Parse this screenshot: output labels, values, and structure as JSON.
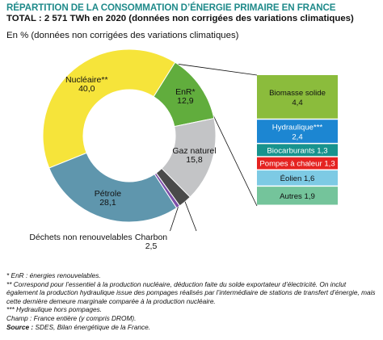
{
  "header": {
    "title": "RÉPARTITION DE LA CONSOMMATION D’ÉNERGIE PRIMAIRE EN FRANCE",
    "subtitle": "TOTAL : 2 571 TWh en 2020 (données non corrigées des variations climatiques)",
    "unit": "En % (données non corrigées des variations climatiques)"
  },
  "chart_data": {
    "type": "pie",
    "style": "donut with bar-of-pie breakdown",
    "title": "RÉPARTITION DE LA CONSOMMATION D’ÉNERGIE PRIMAIRE EN FRANCE",
    "legend": "none",
    "slices": [
      {
        "label": "Nucléaire**",
        "value": 40.0,
        "value_label": "40,0",
        "color": "#f6e43a"
      },
      {
        "label": "EnR*",
        "value": 12.9,
        "value_label": "12,9",
        "color": "#61ad3d"
      },
      {
        "label": "Gaz naturel",
        "value": 15.8,
        "value_label": "15,8",
        "color": "#c3c4c6"
      },
      {
        "label": "Charbon",
        "value": 2.5,
        "value_label": "2,5",
        "color": "#4a4a4a"
      },
      {
        "label": "Déchets non renouvelables",
        "value": 0.7,
        "value_label": "",
        "color": "#7d4fa8"
      },
      {
        "label": "Pétrole",
        "value": 28.1,
        "value_label": "28,1",
        "color": "#5f96ad"
      }
    ],
    "breakdown": {
      "of": "EnR*",
      "items": [
        {
          "label": "Biomasse solide",
          "value": 4.4,
          "value_label": "4,4",
          "color": "#8bbc3c"
        },
        {
          "label": "Hydraulique***",
          "value": 2.4,
          "value_label": "2,4",
          "color": "#1c86d2"
        },
        {
          "label": "Biocarburants",
          "value": 1.3,
          "value_label": "1,3",
          "color": "#17938e"
        },
        {
          "label": "Pompes à chaleur",
          "value": 1.3,
          "value_label": "1,3",
          "color": "#e52321"
        },
        {
          "label": "Éolien",
          "value": 1.6,
          "value_label": "1,6",
          "color": "#7dcae4"
        },
        {
          "label": "Autres",
          "value": 1.9,
          "value_label": "1,9",
          "color": "#74c49b"
        }
      ]
    }
  },
  "notes": {
    "n1": "* EnR : énergies renouvelables.",
    "n2": "** Correspond pour l’essentiel à la production nucléaire, déduction faite du solde exportateur d’électricité. On inclut également la production hydraulique issue des pompages réalisés par l’intermédiaire de stations de transfert d’énergie, mais cette dernière demeure marginale comparée à la production nucléaire.",
    "n3": "*** Hydraulique hors pompages.",
    "n4": "Champ : France entière (y compris DROM).",
    "source_label": "Source :",
    "source_text": " SDES, Bilan énergétique de la France."
  }
}
